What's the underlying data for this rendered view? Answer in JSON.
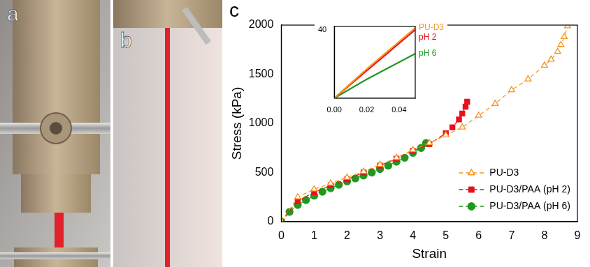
{
  "panel_letters": [
    "a",
    "b",
    "c"
  ],
  "chart_data": [
    {
      "type": "line",
      "x_label": "Strain",
      "y_label": "Stress (kPa)",
      "xlim": [
        0,
        9
      ],
      "xticks": [
        0,
        1,
        2,
        3,
        4,
        5,
        6,
        7,
        8,
        9
      ],
      "ylim": [
        0,
        2000
      ],
      "yticks": [
        0,
        500,
        1000,
        1500,
        2000
      ],
      "grid": false,
      "legend": "lower right",
      "series": [
        {
          "name": "PU-D3",
          "color": "#f7941d",
          "marker": "triangle_open",
          "line_style": "dashed",
          "x": [
            0,
            0.5,
            1.0,
            1.5,
            2.0,
            2.5,
            3.0,
            3.5,
            4.0,
            4.5,
            5.0,
            5.5,
            6.0,
            6.5,
            7.0,
            7.5,
            8.0,
            8.2,
            8.4,
            8.5,
            8.6,
            8.7
          ],
          "values": [
            0,
            250,
            330,
            390,
            450,
            510,
            580,
            650,
            730,
            800,
            880,
            960,
            1080,
            1200,
            1340,
            1450,
            1590,
            1650,
            1730,
            1800,
            1880,
            1990
          ]
        },
        {
          "name": "PU-D3/PAA (pH 2)",
          "color": "#e8101c",
          "marker": "square",
          "line_style": "dashed",
          "x": [
            0,
            0.5,
            1.0,
            1.5,
            2.0,
            2.5,
            3.0,
            3.5,
            4.0,
            4.5,
            5.0,
            5.2,
            5.4,
            5.5,
            5.6,
            5.65
          ],
          "values": [
            0,
            210,
            300,
            370,
            430,
            500,
            570,
            640,
            720,
            790,
            900,
            960,
            1040,
            1100,
            1170,
            1220
          ]
        },
        {
          "name": "PU-D3/PAA (pH 6)",
          "color": "#1e9a1e",
          "marker": "circle",
          "line_style": "dashed",
          "x": [
            0,
            0.25,
            0.5,
            0.75,
            1.0,
            1.25,
            1.5,
            1.75,
            2.0,
            2.25,
            2.5,
            2.75,
            3.0,
            3.25,
            3.5,
            3.75,
            4.0,
            4.25,
            4.4
          ],
          "values": [
            0,
            100,
            170,
            220,
            265,
            305,
            340,
            375,
            410,
            440,
            470,
            500,
            535,
            570,
            610,
            650,
            700,
            750,
            800
          ]
        }
      ]
    },
    {
      "type": "line",
      "xlim": [
        0,
        0.05
      ],
      "xticks": [
        {
          "value": 0,
          "label": "0.00"
        },
        {
          "value": 0.02,
          "label": "0.02"
        },
        {
          "value": 0.04,
          "label": "0.04"
        }
      ],
      "ylim": [
        0,
        42
      ],
      "yticks": [
        40
      ],
      "grid": false,
      "series": [
        {
          "name": "PU-D3",
          "color": "#f7941d",
          "marker": "none",
          "line_style": "solid",
          "x": [
            0,
            0.01,
            0.02,
            0.03,
            0.04,
            0.05
          ],
          "values": [
            0,
            8.5,
            17,
            25,
            33,
            41
          ]
        },
        {
          "name": "pH 2",
          "color": "#e8101c",
          "marker": "none",
          "line_style": "solid",
          "x": [
            0,
            0.01,
            0.02,
            0.03,
            0.04,
            0.05
          ],
          "values": [
            0,
            8,
            16,
            24,
            32,
            40
          ]
        },
        {
          "name": "pH 6",
          "color": "#1e9a1e",
          "marker": "none",
          "line_style": "solid",
          "x": [
            0,
            0.01,
            0.02,
            0.03,
            0.04,
            0.05
          ],
          "values": [
            0,
            5.5,
            11,
            16,
            21,
            26
          ]
        }
      ]
    }
  ]
}
